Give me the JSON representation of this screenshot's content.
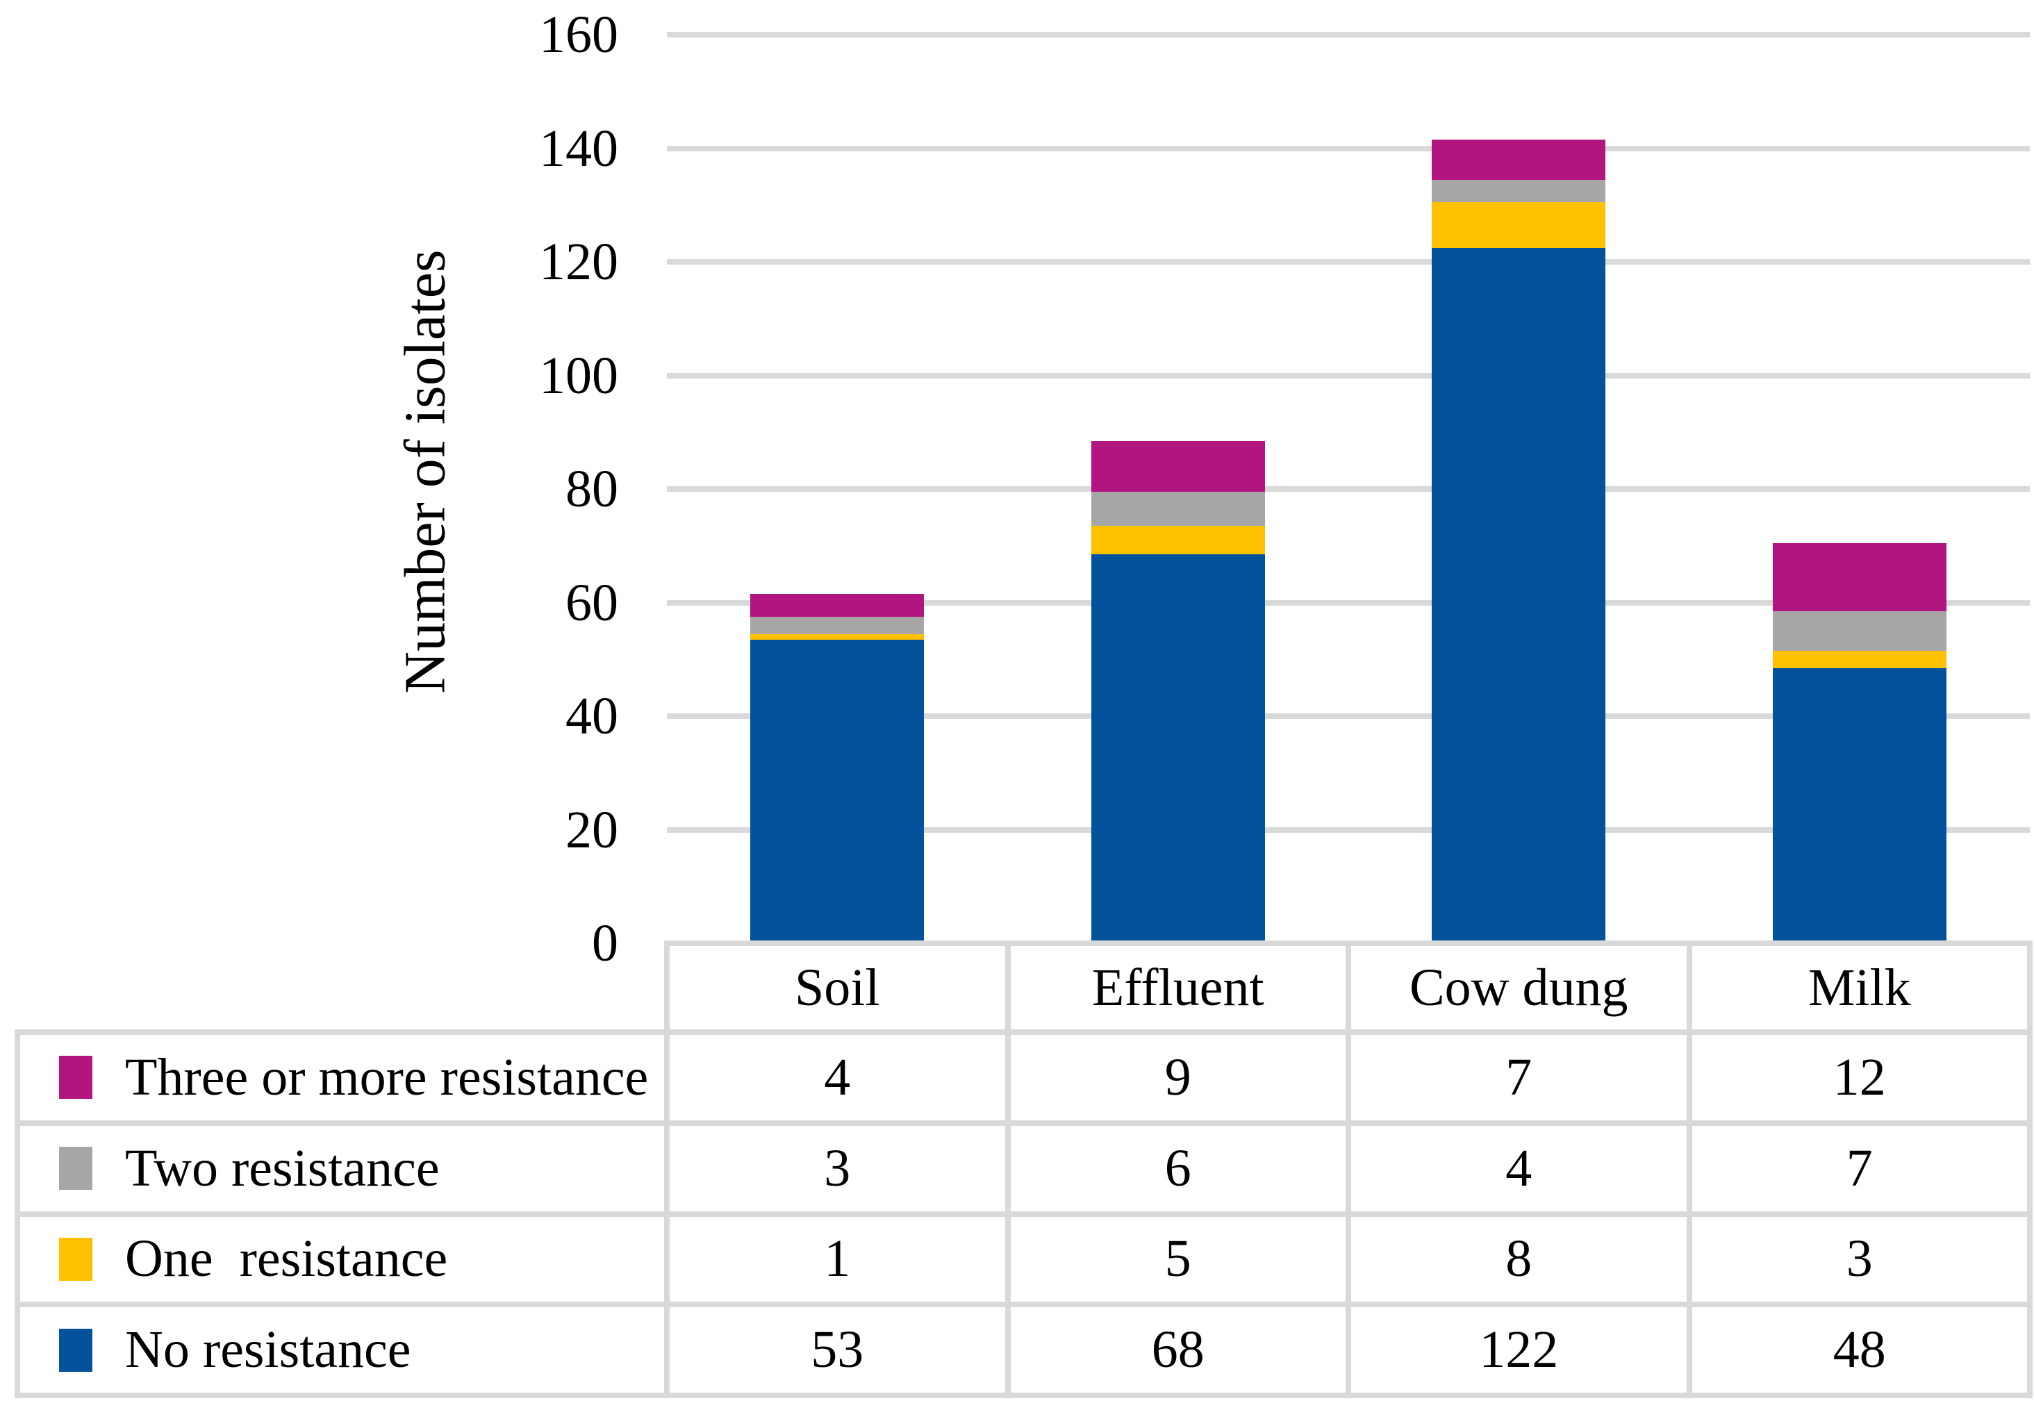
{
  "chart_data": {
    "type": "bar",
    "stacked": true,
    "title": "",
    "xlabel": "",
    "ylabel": "Number of isolates",
    "ylim": [
      0,
      160
    ],
    "ytick_step": 20,
    "yticks": [
      0,
      20,
      40,
      60,
      80,
      100,
      120,
      140,
      160
    ],
    "grid": "horizontal-only",
    "legend_position": "table-left-column",
    "categories": [
      "Soil",
      "Effluent",
      "Cow dung",
      "Milk"
    ],
    "series": [
      {
        "name": "Three or more resistance",
        "color": "#B21480",
        "values": [
          4,
          9,
          7,
          12
        ]
      },
      {
        "name": "Two resistance",
        "color": "#A6A6A6",
        "values": [
          3,
          6,
          4,
          7
        ]
      },
      {
        "name": "One  resistance",
        "color": "#FFC000",
        "values": [
          1,
          5,
          8,
          3
        ]
      },
      {
        "name": "No resistance",
        "color": "#04529C",
        "values": [
          53,
          68,
          122,
          48
        ]
      }
    ],
    "stack_order_bottom_up": [
      "No resistance",
      "One  resistance",
      "Two resistance",
      "Three or more resistance"
    ],
    "colors": {
      "grid_and_table_border": "#D9D9D9",
      "text": "#000000"
    }
  }
}
